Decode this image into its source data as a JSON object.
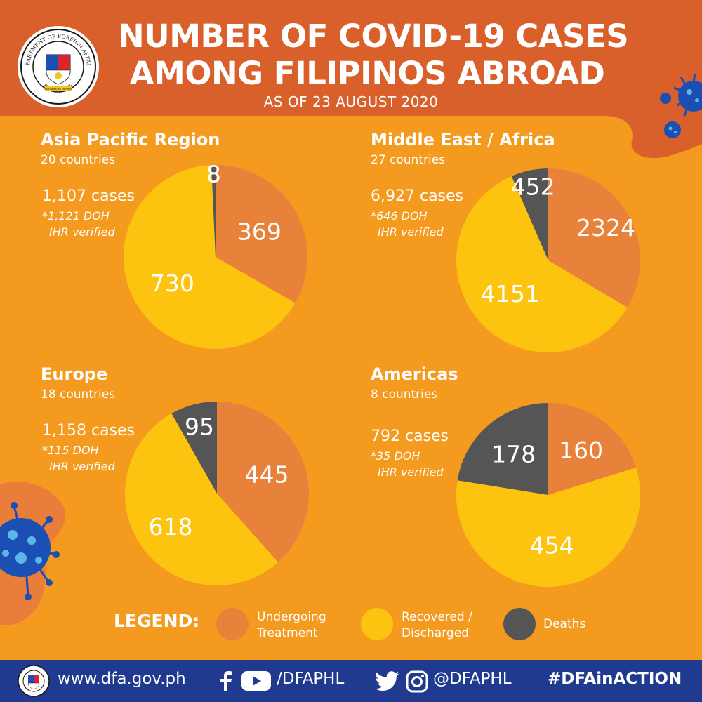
{
  "header": {
    "title_line1": "NUMBER OF  COVID-19 CASES",
    "title_line2": "AMONG FILIPINOS ABROAD",
    "date": "AS OF 23 AUGUST 2020",
    "seal": {
      "ring_top_text": "DEPARTMENT OF FOREIGN AFFAIRS",
      "ring_bottom_text": "PHILIPPINES",
      "inner_text": "REPUBLIKA NG PILIPINAS"
    }
  },
  "colors": {
    "undergoing": "#e8823a",
    "recovered": "#fcc40f",
    "deaths": "#555555",
    "background": "#f49a1f",
    "header": "#d9602b",
    "footer": "#1f3a8f"
  },
  "chart_data": [
    {
      "type": "pie",
      "title": "Asia Pacific Region",
      "countries": "20 countries",
      "cases": "1,107 cases",
      "note_line1": "*1,121 DOH",
      "note_line2": "IHR verified",
      "categories": [
        "Undergoing Treatment",
        "Recovered / Discharged",
        "Deaths"
      ],
      "values": [
        369,
        730,
        8
      ],
      "labels": [
        "369",
        "730",
        "8"
      ]
    },
    {
      "type": "pie",
      "title": "Middle East / Africa",
      "countries": "27 countries",
      "cases": "6,927 cases",
      "note_line1": "*646 DOH",
      "note_line2": "IHR verified",
      "categories": [
        "Undergoing Treatment",
        "Recovered / Discharged",
        "Deaths"
      ],
      "values": [
        2324,
        4151,
        452
      ],
      "labels": [
        "2324",
        "4151",
        "452"
      ]
    },
    {
      "type": "pie",
      "title": "Europe",
      "countries": "18 countries",
      "cases": "1,158 cases",
      "note_line1": "*115 DOH",
      "note_line2": "IHR verified",
      "categories": [
        "Undergoing Treatment",
        "Recovered / Discharged",
        "Deaths"
      ],
      "values": [
        445,
        618,
        95
      ],
      "labels": [
        "445",
        "618",
        "95"
      ]
    },
    {
      "type": "pie",
      "title": "Americas",
      "countries": "8 countries",
      "cases": "792 cases",
      "note_line1": "*35 DOH",
      "note_line2": "IHR verified",
      "categories": [
        "Undergoing Treatment",
        "Recovered / Discharged",
        "Deaths"
      ],
      "values": [
        160,
        454,
        178
      ],
      "labels": [
        "160",
        "454",
        "178"
      ]
    }
  ],
  "legend": {
    "title": "LEGEND:",
    "items": [
      {
        "line1": "Undergoing",
        "line2": "Treatment",
        "color": "#e8823a"
      },
      {
        "line1": "Recovered /",
        "line2": "Discharged",
        "color": "#fcc40f"
      },
      {
        "line1": "Deaths",
        "line2": "",
        "color": "#555555"
      }
    ]
  },
  "footer": {
    "website": "www.dfa.gov.ph",
    "handle_facebook_youtube": "/DFAPHL",
    "handle_twitter_instagram": "@DFAPHL",
    "hashtag": "#DFAinACTION",
    "icons": [
      "facebook-icon",
      "youtube-icon",
      "twitter-icon",
      "instagram-icon"
    ]
  }
}
